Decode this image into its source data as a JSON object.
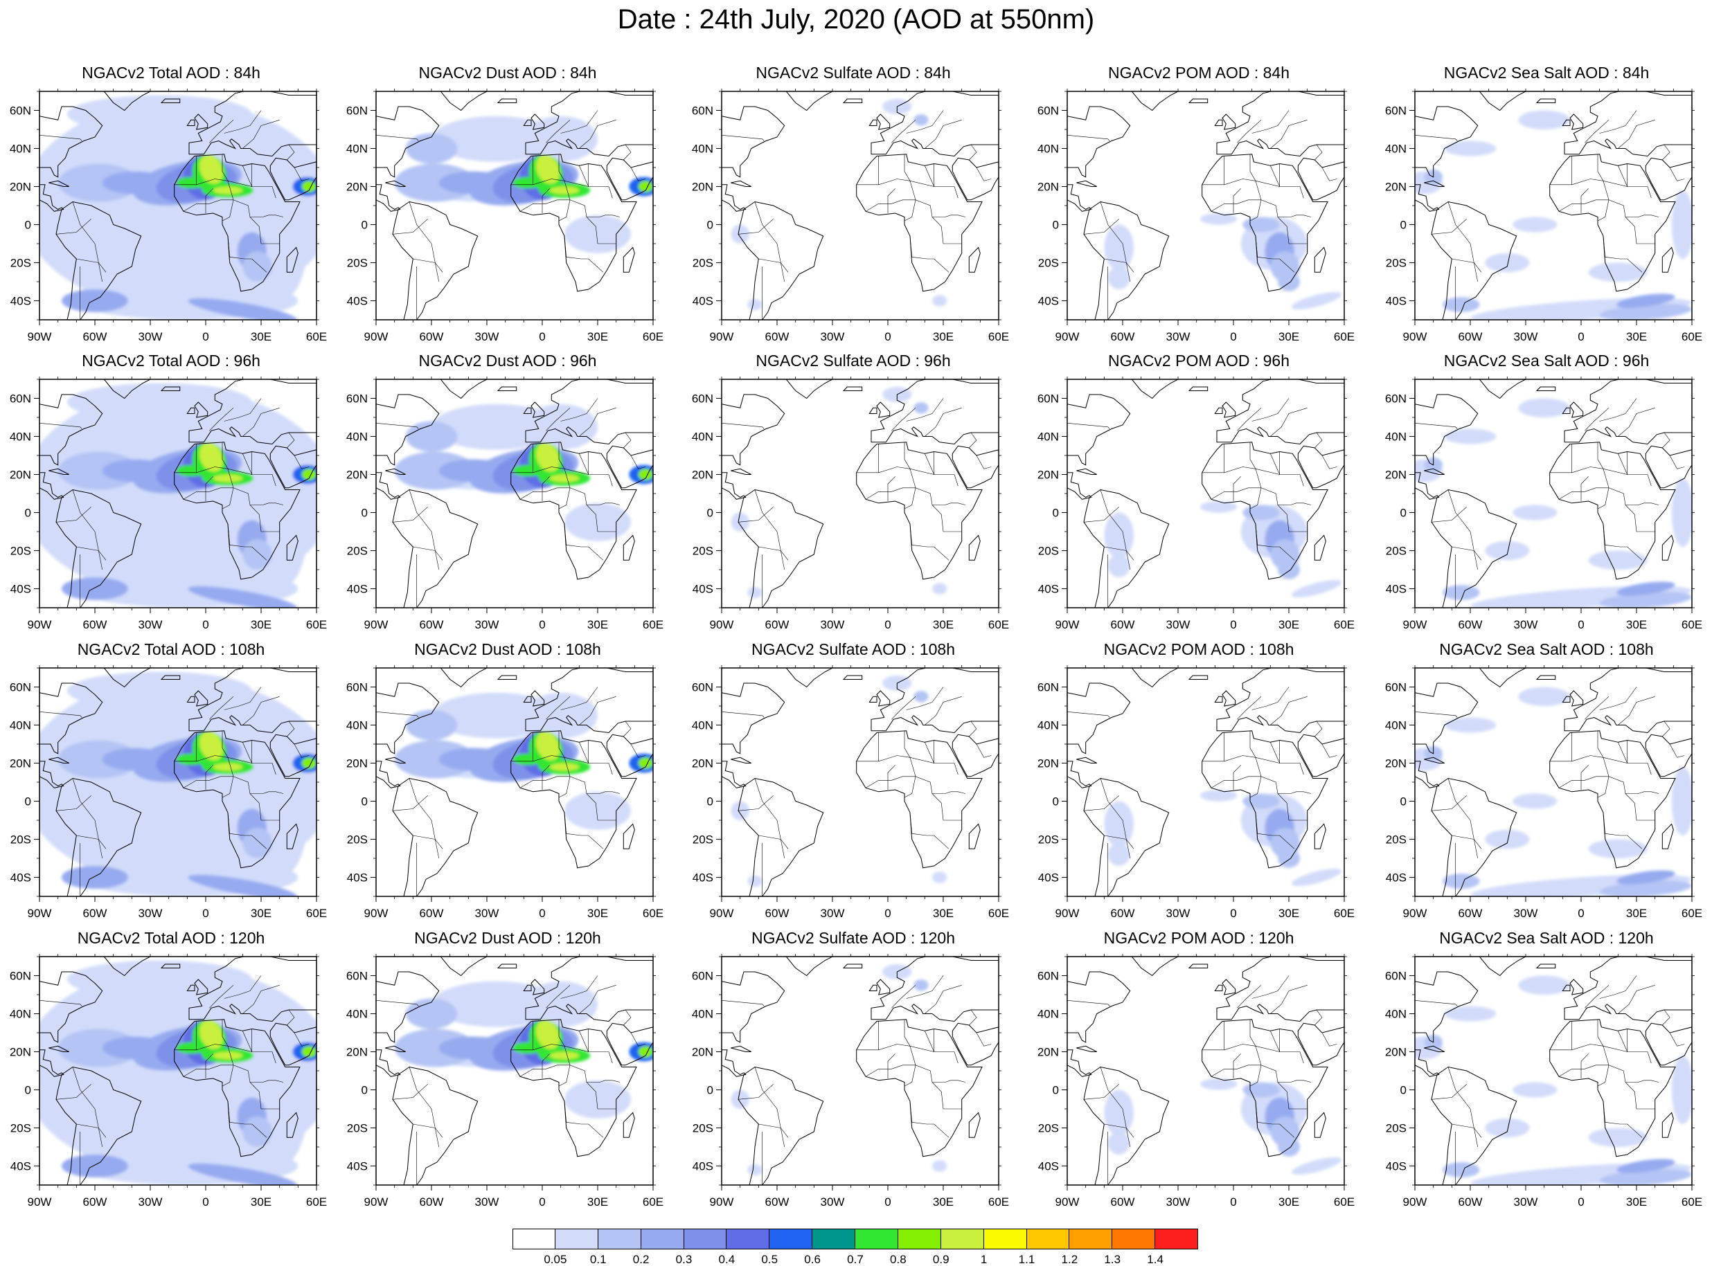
{
  "title": "Date : 24th July, 2020 (AOD at 550nm)",
  "map": {
    "lon_range": [
      -90,
      60
    ],
    "lat_range": [
      -50,
      70
    ],
    "lon_ticks": [
      "90W",
      "60W",
      "30W",
      "0",
      "30E",
      "60E"
    ],
    "lat_ticks": [
      "60N",
      "40N",
      "20N",
      "0",
      "20S",
      "40S"
    ]
  },
  "panels": [
    [
      "NGACv2 Total AOD : 84h",
      "NGACv2 Dust AOD : 84h",
      "NGACv2 Sulfate AOD : 84h",
      "NGACv2 POM AOD : 84h",
      "NGACv2 Sea Salt AOD : 84h"
    ],
    [
      "NGACv2 Total AOD : 96h",
      "NGACv2 Dust AOD : 96h",
      "NGACv2 Sulfate AOD : 96h",
      "NGACv2 POM AOD : 96h",
      "NGACv2 Sea Salt AOD : 96h"
    ],
    [
      "NGACv2 Total AOD : 108h",
      "NGACv2 Dust AOD : 108h",
      "NGACv2 Sulfate AOD : 108h",
      "NGACv2 POM AOD : 108h",
      "NGACv2 Sea Salt AOD : 108h"
    ],
    [
      "NGACv2 Total AOD : 120h",
      "NGACv2 Dust AOD : 120h",
      "NGACv2 Sulfate AOD : 120h",
      "NGACv2 POM AOD : 120h",
      "NGACv2 Sea Salt  AOD : 120h"
    ]
  ],
  "colorbar": {
    "labels": [
      "0.05",
      "0.1",
      "0.2",
      "0.3",
      "0.4",
      "0.5",
      "0.6",
      "0.7",
      "0.8",
      "0.9",
      "1",
      "1.1",
      "1.2",
      "1.3",
      "1.4"
    ],
    "colors": [
      "#ffffff",
      "#d2dcfa",
      "#b4c4f4",
      "#96aaf0",
      "#7d91ea",
      "#5f6ee6",
      "#1e64f0",
      "#00968c",
      "#32e632",
      "#82f000",
      "#c8f03c",
      "#fafa00",
      "#ffc800",
      "#ffa000",
      "#ff7800",
      "#ff1e1e"
    ]
  }
}
